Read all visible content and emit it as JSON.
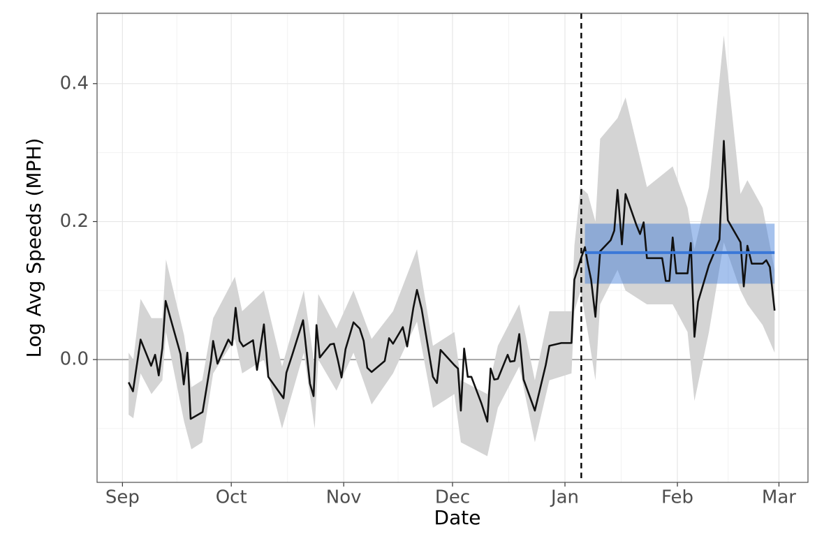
{
  "chart_data": {
    "type": "line",
    "xlabel": "Date",
    "ylabel": "Log Avg Speeds (MPH)",
    "xlim": [
      -7,
      189
    ],
    "ylim": [
      -0.178,
      0.502
    ],
    "xticks": [
      {
        "value": 0,
        "label": "Sep"
      },
      {
        "value": 30,
        "label": "Oct"
      },
      {
        "value": 61,
        "label": "Nov"
      },
      {
        "value": 91,
        "label": "Dec"
      },
      {
        "value": 122,
        "label": "Jan"
      },
      {
        "value": 153,
        "label": "Feb"
      },
      {
        "value": 181,
        "label": "Mar"
      }
    ],
    "yticks": [
      {
        "value": 0,
        "label": "0.0"
      },
      {
        "value": 0.2,
        "label": "0.2"
      },
      {
        "value": 0.4,
        "label": "0.4"
      }
    ],
    "grid": true,
    "minor_grid": true,
    "hline": 0,
    "vline": 126.5,
    "line": {
      "color": "#111111",
      "x": [
        1.7,
        2.9,
        5.0,
        7.9,
        9.0,
        10.0,
        11.0,
        11.9,
        16.0,
        16.9,
        17.9,
        18.8,
        22.1,
        24.4,
        25.0,
        26.2,
        29.2,
        30.2,
        31.2,
        32.3,
        33.3,
        36.0,
        37.1,
        39.0,
        40.2,
        44.4,
        45.2,
        46.7,
        49.8,
        51.7,
        52.7,
        53.5,
        54.4,
        57.3,
        58.3,
        59.4,
        60.4,
        61.5,
        63.7,
        65.4,
        66.5,
        67.5,
        68.7,
        72.3,
        73.5,
        74.6,
        77.3,
        78.5,
        80.2,
        81.2,
        82.5,
        85.6,
        86.7,
        87.7,
        91.5,
        92.5,
        93.3,
        94.2,
        95.2,
        96.2,
        99.0,
        100.6,
        101.5,
        102.5,
        103.5,
        106.2,
        106.9,
        108.1,
        109.4,
        110.6,
        113.7,
        116.7,
        117.7,
        121.0,
        123.8,
        124.6,
        126.3,
        127.5,
        128.3,
        129.2,
        130.4,
        131.7,
        134.6,
        135.6,
        136.5,
        137.7,
        138.7,
        141.7,
        142.7,
        143.7,
        144.6,
        148.8,
        149.8,
        150.8,
        151.7,
        152.7,
        155.8,
        156.7,
        157.7,
        158.7,
        161.7,
        163.7,
        164.6,
        165.8,
        166.9,
        170.4,
        171.3,
        172.3,
        173.5,
        176.5,
        177.5,
        178.5,
        179.8
      ],
      "values": [
        -0.033,
        -0.046,
        0.029,
        -0.009,
        0.007,
        -0.023,
        0.017,
        0.085,
        0.008,
        -0.036,
        0.01,
        -0.086,
        -0.076,
        -0.002,
        0.027,
        -0.006,
        0.029,
        0.021,
        0.075,
        0.027,
        0.019,
        0.028,
        -0.015,
        0.051,
        -0.025,
        -0.056,
        -0.019,
        0.005,
        0.057,
        -0.035,
        -0.053,
        0.05,
        0.003,
        0.022,
        0.023,
        -0.001,
        -0.026,
        0.015,
        0.054,
        0.045,
        0.027,
        -0.012,
        -0.018,
        -0.002,
        0.031,
        0.023,
        0.047,
        0.019,
        0.075,
        0.101,
        0.073,
        -0.025,
        -0.034,
        0.014,
        -0.008,
        -0.013,
        -0.074,
        0.016,
        -0.025,
        -0.025,
        -0.064,
        -0.09,
        -0.013,
        -0.029,
        -0.028,
        0.007,
        -0.003,
        -0.002,
        0.037,
        -0.029,
        -0.074,
        -0.008,
        0.02,
        0.024,
        0.024,
        0.116,
        0.145,
        0.163,
        0.139,
        0.116,
        0.062,
        0.157,
        0.173,
        0.187,
        0.246,
        0.167,
        0.24,
        0.195,
        0.182,
        0.199,
        0.147,
        0.147,
        0.114,
        0.114,
        0.177,
        0.125,
        0.125,
        0.169,
        0.033,
        0.084,
        0.137,
        0.162,
        0.174,
        0.317,
        0.202,
        0.17,
        0.106,
        0.165,
        0.139,
        0.139,
        0.144,
        0.134,
        0.071
      ]
    },
    "band": {
      "color": "#d4d4d4",
      "x": [
        1.7,
        3,
        5,
        8,
        11,
        12,
        17,
        19,
        22,
        25,
        31,
        33,
        39,
        44,
        50,
        53,
        54,
        59,
        63.7,
        68.7,
        74.6,
        81.2,
        85.6,
        91.5,
        93.3,
        100.6,
        103.5,
        109.4,
        113.7,
        117.7,
        123.8,
        124.6,
        126.3,
        128.3,
        130.4,
        131.7,
        136.5,
        138.7,
        144.6,
        151.7,
        155.8,
        157.7,
        161.7,
        165.8,
        170.4,
        172.3,
        176.5,
        179.8
      ],
      "lower": [
        -0.08,
        -0.085,
        -0.02,
        -0.05,
        -0.03,
        0.04,
        -0.09,
        -0.13,
        -0.12,
        -0.02,
        0.03,
        -0.02,
        0.0,
        -0.1,
        0.01,
        -0.1,
        0.0,
        -0.045,
        0.01,
        -0.065,
        -0.02,
        0.055,
        -0.07,
        -0.05,
        -0.12,
        -0.14,
        -0.07,
        -0.01,
        -0.12,
        -0.03,
        -0.02,
        0.07,
        0.1,
        0.04,
        -0.03,
        0.08,
        0.13,
        0.1,
        0.08,
        0.08,
        0.04,
        -0.06,
        0.04,
        0.17,
        0.1,
        0.08,
        0.05,
        0.01
      ],
      "upper": [
        0.01,
        0.0,
        0.088,
        0.06,
        0.06,
        0.145,
        0.035,
        -0.04,
        -0.03,
        0.06,
        0.12,
        0.07,
        0.1,
        -0.01,
        0.1,
        -0.01,
        0.095,
        0.045,
        0.1,
        0.03,
        0.07,
        0.16,
        0.02,
        0.04,
        -0.03,
        -0.05,
        0.02,
        0.08,
        -0.03,
        0.07,
        0.07,
        0.165,
        0.25,
        0.24,
        0.2,
        0.32,
        0.35,
        0.38,
        0.25,
        0.28,
        0.22,
        0.16,
        0.25,
        0.47,
        0.24,
        0.26,
        0.22,
        0.13
      ]
    },
    "interval": {
      "x": [
        127.5,
        179.8
      ],
      "lower": 0.11,
      "upper": 0.197,
      "mean": 0.155,
      "color": "#3a78d8"
    }
  }
}
